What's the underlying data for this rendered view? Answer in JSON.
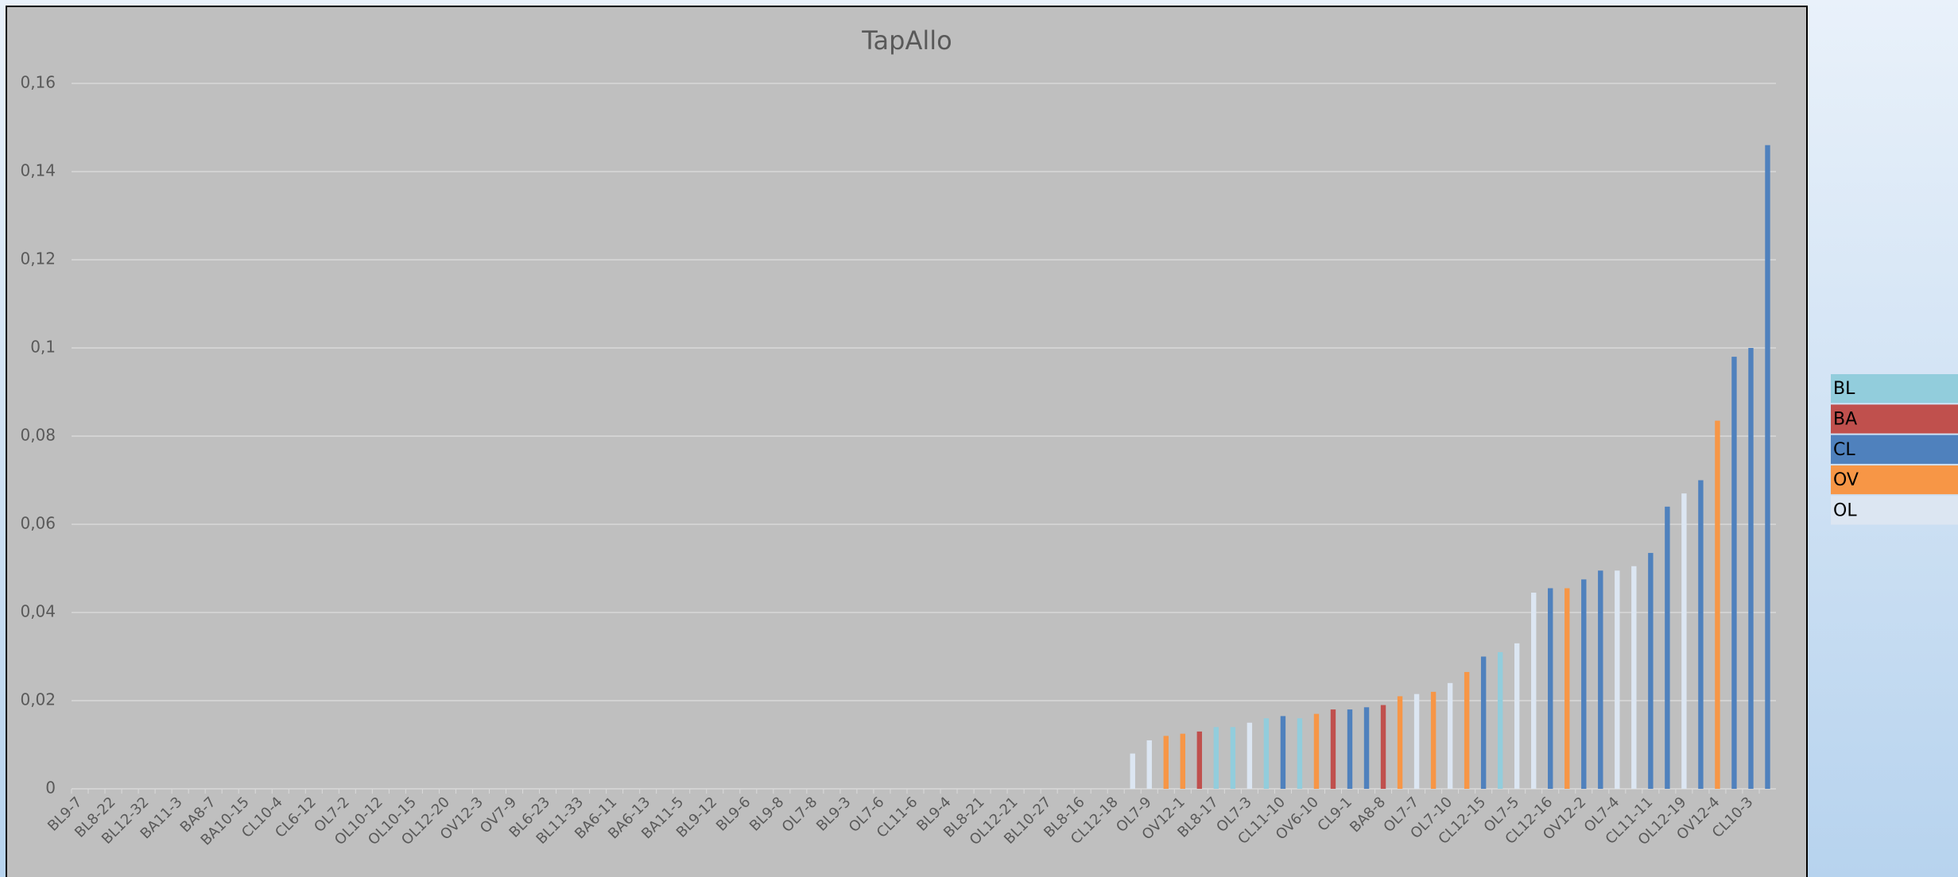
{
  "chart_data": {
    "type": "bar",
    "title": "TapAllo",
    "categories": [
      "BL9-7",
      null,
      "BL8-22",
      null,
      "BL12-32",
      null,
      "BA11-3",
      null,
      "BA8-7",
      null,
      "BA10-15",
      null,
      "CL10-4",
      null,
      "CL6-12",
      null,
      "OL7-2",
      null,
      "OL10-12",
      null,
      "OL10-15",
      null,
      "OL12-20",
      null,
      "OV12-3",
      null,
      "OV7-9",
      null,
      "BL6-23",
      null,
      "BL11-33",
      null,
      "BA6-11",
      null,
      "BA6-13",
      null,
      "BA11-5",
      null,
      "BL9-12",
      null,
      "BL9-6",
      null,
      "BL9-8",
      null,
      "OL7-8",
      null,
      "BL9-3",
      null,
      "OL7-6",
      null,
      "CL11-6",
      null,
      "BL9-4",
      null,
      "BL8-21",
      null,
      "OL12-21",
      null,
      "BL10-27",
      null,
      "BL8-16",
      null,
      "CL12-18",
      null,
      "OL7-9",
      null,
      "OV12-1",
      null,
      "BL8-17",
      null,
      "OL7-3",
      null,
      "CL11-10",
      null,
      "OV6-10",
      null,
      "CL9-1",
      null,
      "BA8-8",
      null,
      "OL7-7",
      null,
      "OL7-10",
      null,
      "CL12-15",
      null,
      "OL7-5",
      null,
      "CL12-16",
      null,
      "OV12-2",
      null,
      "OL7-4",
      null,
      "CL11-11",
      null,
      "OL12-19",
      null,
      "OV12-4",
      null,
      "CL10-3",
      null
    ],
    "series": [
      {
        "name": "BL",
        "color": "#92cddc",
        "values": [
          null,
          null,
          null,
          null,
          null,
          null,
          null,
          null,
          null,
          null,
          null,
          null,
          null,
          null,
          null,
          null,
          null,
          null,
          null,
          null,
          null,
          null,
          null,
          null,
          null,
          null,
          null,
          null,
          null,
          null,
          null,
          null,
          null,
          null,
          null,
          null,
          null,
          null,
          null,
          null,
          null,
          null,
          null,
          null,
          null,
          null,
          null,
          null,
          null,
          null,
          null,
          null,
          null,
          null,
          null,
          null,
          null,
          null,
          null,
          null,
          null,
          null,
          null,
          null,
          null,
          null,
          null,
          null,
          0.014,
          0.014,
          null,
          0.016,
          null,
          0.016,
          null,
          null,
          null,
          null,
          null,
          null,
          null,
          null,
          null,
          null,
          null,
          0.031,
          null,
          null,
          null,
          null,
          null,
          null,
          null,
          null,
          null,
          null,
          null,
          null,
          null,
          null,
          null,
          null
        ]
      },
      {
        "name": "BA",
        "color": "#c0504d",
        "values": [
          null,
          null,
          null,
          null,
          null,
          null,
          null,
          null,
          null,
          null,
          null,
          null,
          null,
          null,
          null,
          null,
          null,
          null,
          null,
          null,
          null,
          null,
          null,
          null,
          null,
          null,
          null,
          null,
          null,
          null,
          null,
          null,
          null,
          null,
          null,
          null,
          null,
          null,
          null,
          null,
          null,
          null,
          null,
          null,
          null,
          null,
          null,
          null,
          null,
          null,
          null,
          null,
          null,
          null,
          null,
          null,
          null,
          null,
          null,
          null,
          null,
          null,
          null,
          null,
          null,
          null,
          null,
          0.013,
          null,
          null,
          null,
          null,
          null,
          null,
          null,
          0.018,
          null,
          null,
          0.019,
          null,
          null,
          null,
          null,
          null,
          null,
          null,
          null,
          null,
          null,
          null,
          null,
          null,
          null,
          null,
          null,
          null,
          null,
          null,
          null,
          null,
          null,
          null
        ]
      },
      {
        "name": "CL",
        "color": "#4f81bd",
        "values": [
          null,
          null,
          null,
          null,
          null,
          null,
          null,
          null,
          null,
          null,
          null,
          null,
          null,
          null,
          null,
          null,
          null,
          null,
          null,
          null,
          null,
          null,
          null,
          null,
          null,
          null,
          null,
          null,
          null,
          null,
          null,
          null,
          null,
          null,
          null,
          null,
          null,
          null,
          null,
          null,
          null,
          null,
          null,
          null,
          null,
          null,
          null,
          null,
          null,
          null,
          null,
          null,
          null,
          null,
          null,
          null,
          null,
          null,
          null,
          null,
          null,
          null,
          null,
          null,
          null,
          null,
          null,
          null,
          null,
          null,
          null,
          null,
          0.0165,
          null,
          null,
          null,
          0.018,
          0.0185,
          null,
          null,
          null,
          null,
          null,
          null,
          0.03,
          null,
          null,
          null,
          0.0455,
          null,
          0.0475,
          0.0495,
          null,
          null,
          0.0535,
          0.064,
          null,
          0.07,
          null,
          0.098,
          0.1,
          0.146
        ]
      },
      {
        "name": "OV",
        "color": "#f79646",
        "values": [
          null,
          null,
          null,
          null,
          null,
          null,
          null,
          null,
          null,
          null,
          null,
          null,
          null,
          null,
          null,
          null,
          null,
          null,
          null,
          null,
          null,
          null,
          null,
          null,
          null,
          null,
          null,
          null,
          null,
          null,
          null,
          null,
          null,
          null,
          null,
          null,
          null,
          null,
          null,
          null,
          null,
          null,
          null,
          null,
          null,
          null,
          null,
          null,
          null,
          null,
          null,
          null,
          null,
          null,
          null,
          null,
          null,
          null,
          null,
          null,
          null,
          null,
          null,
          null,
          null,
          0.012,
          0.0125,
          null,
          null,
          null,
          null,
          null,
          null,
          null,
          0.017,
          null,
          null,
          null,
          null,
          0.021,
          null,
          0.022,
          null,
          0.0265,
          null,
          null,
          null,
          null,
          null,
          0.0455,
          null,
          null,
          null,
          null,
          null,
          null,
          null,
          null,
          0.0835,
          null,
          null,
          null
        ]
      },
      {
        "name": "OL",
        "color": "#dce6f2",
        "values": [
          null,
          null,
          null,
          null,
          null,
          null,
          null,
          null,
          null,
          null,
          null,
          null,
          null,
          null,
          null,
          null,
          null,
          null,
          null,
          null,
          null,
          null,
          null,
          null,
          null,
          null,
          null,
          null,
          null,
          null,
          null,
          null,
          null,
          null,
          null,
          null,
          null,
          null,
          null,
          null,
          null,
          null,
          null,
          null,
          null,
          null,
          null,
          null,
          null,
          null,
          null,
          null,
          null,
          null,
          null,
          null,
          null,
          null,
          null,
          null,
          null,
          null,
          null,
          0.008,
          0.011,
          null,
          null,
          null,
          null,
          null,
          0.015,
          null,
          null,
          null,
          null,
          null,
          null,
          null,
          null,
          null,
          0.0215,
          null,
          0.024,
          null,
          null,
          null,
          0.033,
          0.0445,
          null,
          null,
          null,
          null,
          0.0495,
          0.0505,
          null,
          null,
          0.067,
          null,
          null,
          null,
          null,
          null
        ]
      }
    ],
    "ylim": [
      0,
      0.16
    ],
    "yticks": [
      0,
      {
        "value": 0.02,
        "label": "0,02"
      },
      {
        "value": 0.04,
        "label": "0,04"
      },
      {
        "value": 0.06,
        "label": "0,06"
      },
      {
        "value": 0.08,
        "label": "0,08"
      },
      {
        "value": 0.1,
        "label": "0,1"
      },
      {
        "value": 0.12,
        "label": "0,12"
      },
      {
        "value": 0.14,
        "label": "0,14"
      },
      {
        "value": 0.16,
        "label": "0,16"
      }
    ],
    "grid": true,
    "legend": "right"
  }
}
